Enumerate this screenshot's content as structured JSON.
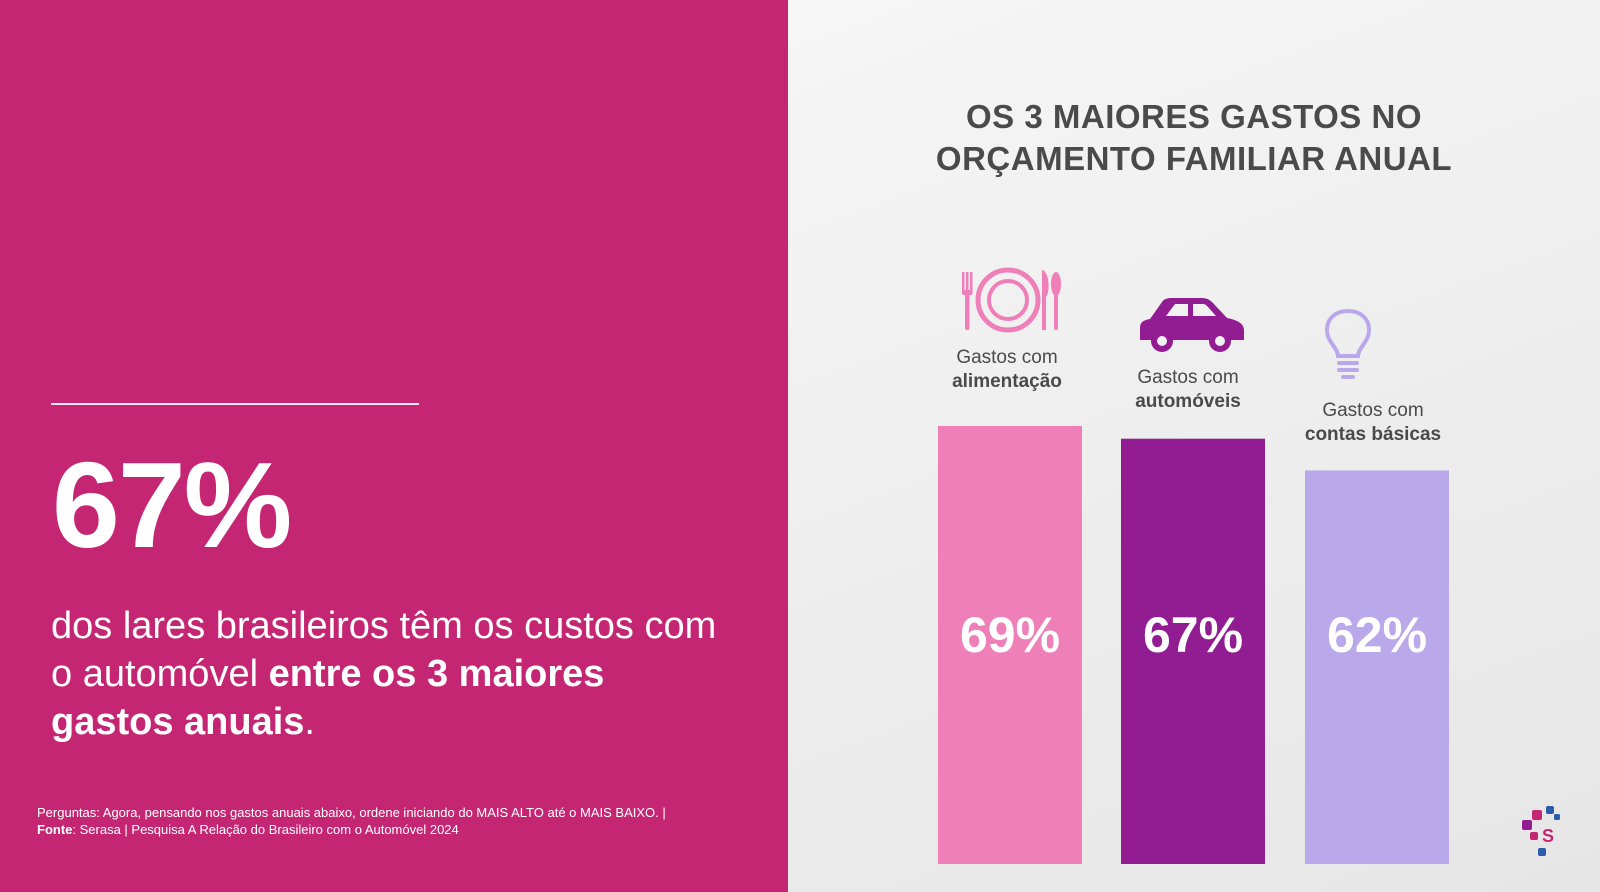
{
  "headline": {
    "stat": "67%",
    "description_regular": "dos lares brasileiros têm os custos com o automóvel ",
    "description_bold": "entre os 3 maiores gastos anuais",
    "description_end": "."
  },
  "footnote": {
    "question": "Perguntas: Agora, pensando nos gastos anuais abaixo, ordene iniciando do MAIS ALTO até o MAIS BAIXO.  |",
    "source_label": "Fonte",
    "source_text": ": Serasa | Pesquisa A Relação do Brasileiro com o Automóvel 2024"
  },
  "chart_title_line1": "OS 3 MAIORES GASTOS NO",
  "chart_title_line2": "ORÇAMENTO FAMILIAR ANUAL",
  "colors": {
    "left_background": "#c52673",
    "bar_alimentacao": "#ef7fb8",
    "bar_automoveis": "#921d93",
    "bar_contas": "#b9a9eb",
    "icon_alimentacao": "#ef7fb8",
    "icon_automoveis": "#921d93",
    "icon_contas": "#b9a9eb"
  },
  "categories": [
    {
      "prefix": "Gastos com",
      "name": "alimentação",
      "icon": "fork-plate-knife-icon"
    },
    {
      "prefix": "Gastos com",
      "name": "automóveis",
      "icon": "car-icon"
    },
    {
      "prefix": "Gastos com",
      "name": "contas básicas",
      "icon": "lightbulb-icon"
    }
  ],
  "chart_data": {
    "type": "bar",
    "title": "OS 3 MAIORES GASTOS NO ORÇAMENTO FAMILIAR ANUAL",
    "categories": [
      "Gastos com alimentação",
      "Gastos com automóveis",
      "Gastos com contas básicas"
    ],
    "values": [
      69,
      67,
      62
    ],
    "value_labels": [
      "69%",
      "67%",
      "62%"
    ],
    "unit": "%",
    "grid": false,
    "legend": "none"
  }
}
